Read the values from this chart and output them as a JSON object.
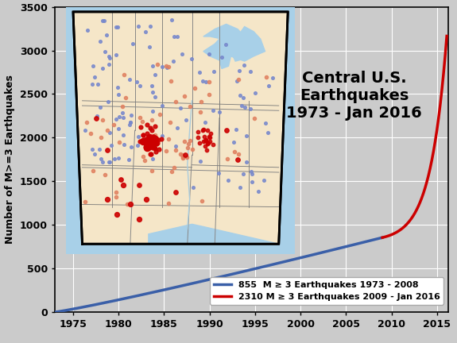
{
  "title": "Central U.S.\nEarthquakes\n1973 - Jan 2016",
  "ylabel": "Number of M>=3 Earthquakes",
  "xlim": [
    1973,
    2016.2
  ],
  "ylim": [
    0,
    3500
  ],
  "yticks": [
    0,
    500,
    1000,
    1500,
    2000,
    2500,
    3000,
    3500
  ],
  "xticks": [
    1975,
    1980,
    1985,
    1990,
    1995,
    2000,
    2005,
    2010,
    2015
  ],
  "blue_label": "855  M ≥ 3 Earthquakes 1973 - 2008",
  "red_label": "2310 M ≥ 3 Earthquakes 2009 - Jan 2016",
  "blue_color": "#3a5fa8",
  "red_color": "#cc0000",
  "background_color": "#cbcbcb",
  "map_land_color": "#f5e6c8",
  "map_water_color": "#a8d0e8",
  "blue_start_year": 1973,
  "blue_end_year": 2009,
  "red_start_year": 2009,
  "red_end_year": 2016.08,
  "blue_total": 855,
  "red_total": 2310,
  "grid_color": "#ffffff",
  "title_fontsize": 14,
  "legend_fontsize": 8
}
